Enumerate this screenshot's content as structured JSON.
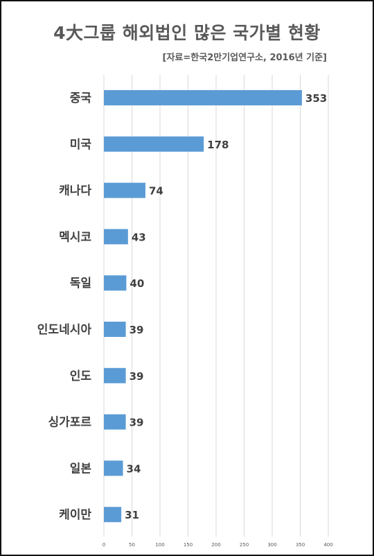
{
  "header": {
    "title": "4大그룹 해외법인 많은 국가별 현황",
    "source": "[자료=한국2만기업연구소, 2016년 기준]"
  },
  "colors": {
    "bar": "#5B9BD5",
    "grid": "#D9D9D9",
    "text": "#404040"
  },
  "chart_data": {
    "type": "bar",
    "orientation": "horizontal",
    "categories": [
      "중국",
      "미국",
      "캐나다",
      "멕시코",
      "독일",
      "인도네시아",
      "인도",
      "싱가포르",
      "일본",
      "케이만"
    ],
    "values": [
      353,
      178,
      74,
      43,
      40,
      39,
      39,
      39,
      34,
      31
    ],
    "title": "4大그룹 해외법인 많은 국가별 현황",
    "subtitle": "[자료=한국2만기업연구소, 2016년 기준]",
    "xlim": [
      0,
      400
    ],
    "xticks": [
      0,
      50,
      100,
      150,
      200,
      250,
      300,
      350,
      400
    ],
    "grid": true,
    "data_labels": true,
    "legend": "none"
  }
}
